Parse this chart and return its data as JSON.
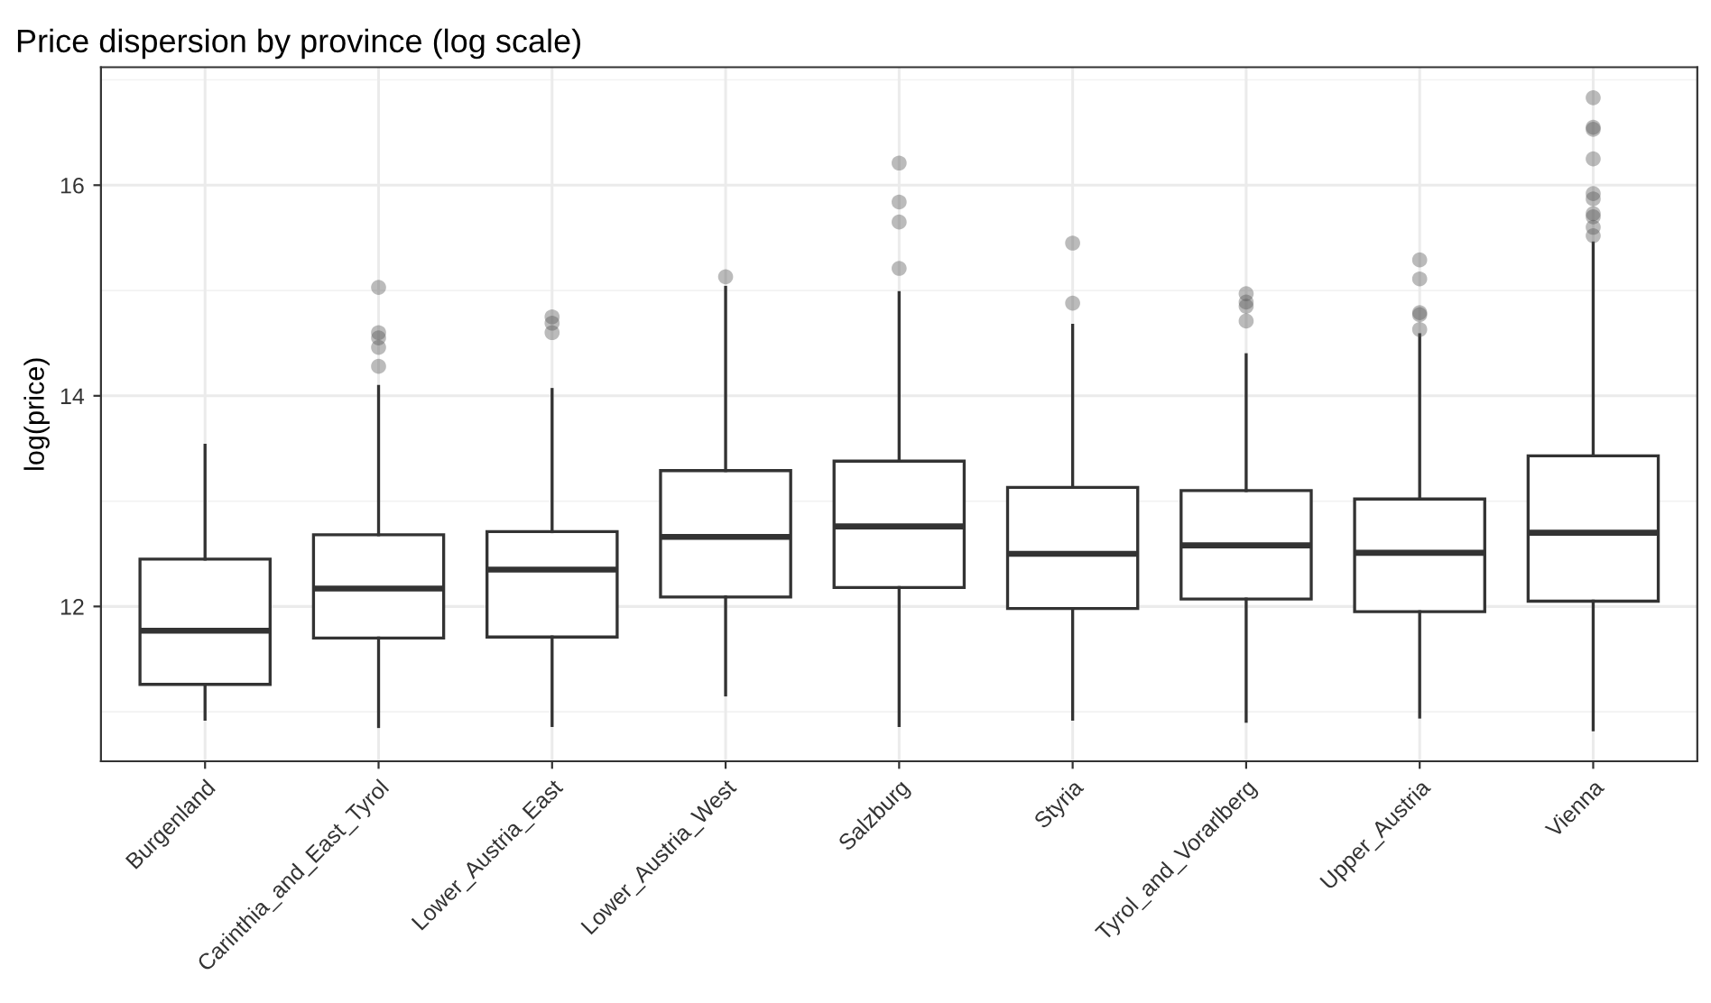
{
  "chart_data": {
    "type": "box",
    "title": "Price dispersion by province (log scale)",
    "ylabel": "log(price)",
    "categories": [
      "Burgenland",
      "Carinthia_and_East_Tyrol",
      "Lower_Austria_East",
      "Lower_Austria_West",
      "Salzburg",
      "Styria",
      "Tyrol_and_Vorarlberg",
      "Upper_Austria",
      "Vienna"
    ],
    "boxes": [
      {
        "low": 10.93,
        "q1": 11.26,
        "median": 11.77,
        "q3": 12.45,
        "high": 13.53
      },
      {
        "low": 10.86,
        "q1": 11.7,
        "median": 12.17,
        "q3": 12.68,
        "high": 14.09,
        "outliers": [
          15.03,
          14.6,
          14.55,
          14.46,
          14.28
        ]
      },
      {
        "low": 10.87,
        "q1": 11.71,
        "median": 12.35,
        "q3": 12.71,
        "high": 14.06,
        "outliers": [
          14.75,
          14.69,
          14.6
        ]
      },
      {
        "low": 11.16,
        "q1": 12.09,
        "median": 12.66,
        "q3": 13.29,
        "high": 15.03,
        "outliers": [
          15.13
        ]
      },
      {
        "low": 10.87,
        "q1": 12.18,
        "median": 12.76,
        "q3": 13.38,
        "high": 14.98,
        "outliers": [
          16.21,
          15.84,
          15.65,
          15.21
        ]
      },
      {
        "low": 10.93,
        "q1": 11.98,
        "median": 12.5,
        "q3": 13.13,
        "high": 14.67,
        "outliers": [
          15.45,
          14.88
        ]
      },
      {
        "low": 10.91,
        "q1": 12.07,
        "median": 12.58,
        "q3": 13.1,
        "high": 14.39,
        "outliers": [
          14.97,
          14.89,
          14.85,
          14.71
        ]
      },
      {
        "low": 10.95,
        "q1": 11.95,
        "median": 12.51,
        "q3": 13.02,
        "high": 14.58,
        "outliers": [
          15.29,
          15.11,
          14.79,
          14.77,
          14.63
        ]
      },
      {
        "low": 10.83,
        "q1": 12.05,
        "median": 12.7,
        "q3": 13.43,
        "high": 15.45,
        "outliers": [
          16.83,
          16.55,
          16.53,
          16.25,
          15.92,
          15.87,
          15.73,
          15.7,
          15.6,
          15.52
        ]
      }
    ],
    "color": "#333333",
    "ylim": [
      10.53,
      17.12
    ],
    "yticks": [
      12,
      14,
      16
    ],
    "grid": true
  }
}
